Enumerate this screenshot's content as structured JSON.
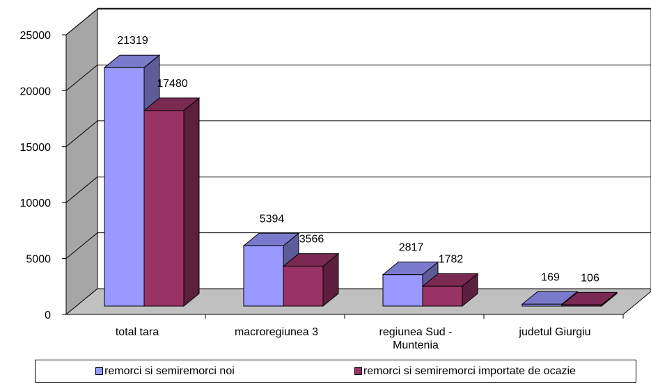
{
  "chart_data": {
    "type": "bar3d",
    "categories": [
      "total tara",
      "macroregiunea 3",
      "regiunea Sud - Muntenia",
      "judetul Giurgiu"
    ],
    "series": [
      {
        "name": "remorci si semiremorci noi",
        "color": "#9999ff",
        "values": [
          21319,
          5394,
          2817,
          169
        ]
      },
      {
        "name": "remorci si semiremorci importate de ocazie",
        "color": "#993366",
        "values": [
          17480,
          3566,
          1782,
          106
        ]
      }
    ],
    "ylim": [
      0,
      25000
    ],
    "yticks": [
      0,
      5000,
      10000,
      15000,
      20000,
      25000
    ],
    "grid": true,
    "legend": "bottom"
  }
}
